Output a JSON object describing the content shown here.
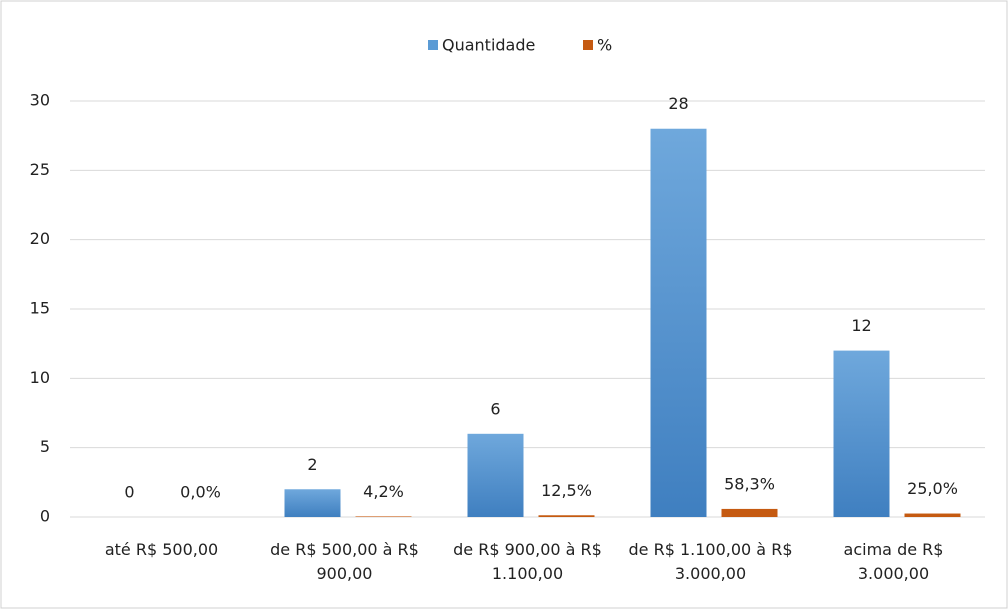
{
  "chart_data": {
    "type": "bar",
    "categories": [
      "até R$ 500,00",
      "de R$ 500,00 à R$ 900,00",
      "de R$ 900,00 à R$ 1.100,00",
      "de R$ 1.100,00 à R$ 3.000,00",
      "acima de R$ 3.000,00"
    ],
    "series": [
      {
        "name": "Quantidade",
        "color": "#5b9bd5",
        "values": [
          0,
          2,
          6,
          28,
          12
        ]
      },
      {
        "name": "%",
        "color": "#c55a11",
        "values": [
          0,
          0.042,
          0.125,
          0.583,
          0.25
        ],
        "value_labels": [
          "0,0%",
          "4,2%",
          "12,5%",
          "58,3%",
          "25,0%"
        ]
      }
    ],
    "ylim": [
      0,
      30
    ],
    "yticks": [
      0,
      5,
      10,
      15,
      20,
      25,
      30
    ],
    "grid": true,
    "legend": "top"
  }
}
